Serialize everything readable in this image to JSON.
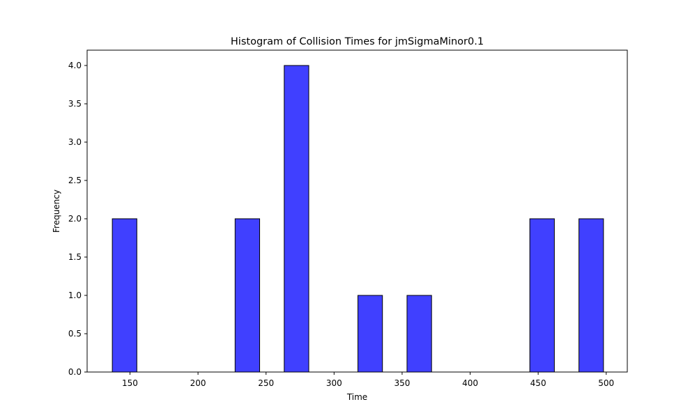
{
  "chart_data": {
    "type": "bar",
    "title": "Histogram of Collision Times for jmSigmaMinor0.1",
    "xlabel": "Time",
    "ylabel": "Frequency",
    "bins": {
      "start": 137,
      "width": 18.05,
      "counts": [
        2,
        0,
        0,
        0,
        0,
        2,
        0,
        4,
        0,
        0,
        1,
        0,
        1,
        0,
        0,
        0,
        0,
        2,
        0,
        2
      ]
    },
    "xlim": [
      118.5,
      515.5
    ],
    "ylim": [
      0,
      4.2
    ],
    "xticks": [
      150,
      200,
      250,
      300,
      350,
      400,
      450,
      500
    ],
    "yticks": [
      0.0,
      0.5,
      1.0,
      1.5,
      2.0,
      2.5,
      3.0,
      3.5,
      4.0
    ],
    "ytick_labels": [
      "0.0",
      "0.5",
      "1.0",
      "1.5",
      "2.0",
      "2.5",
      "3.0",
      "3.5",
      "4.0"
    ],
    "bar_color": "#4040ff",
    "edge_color": "#000000",
    "grid": false,
    "legend": "none"
  }
}
